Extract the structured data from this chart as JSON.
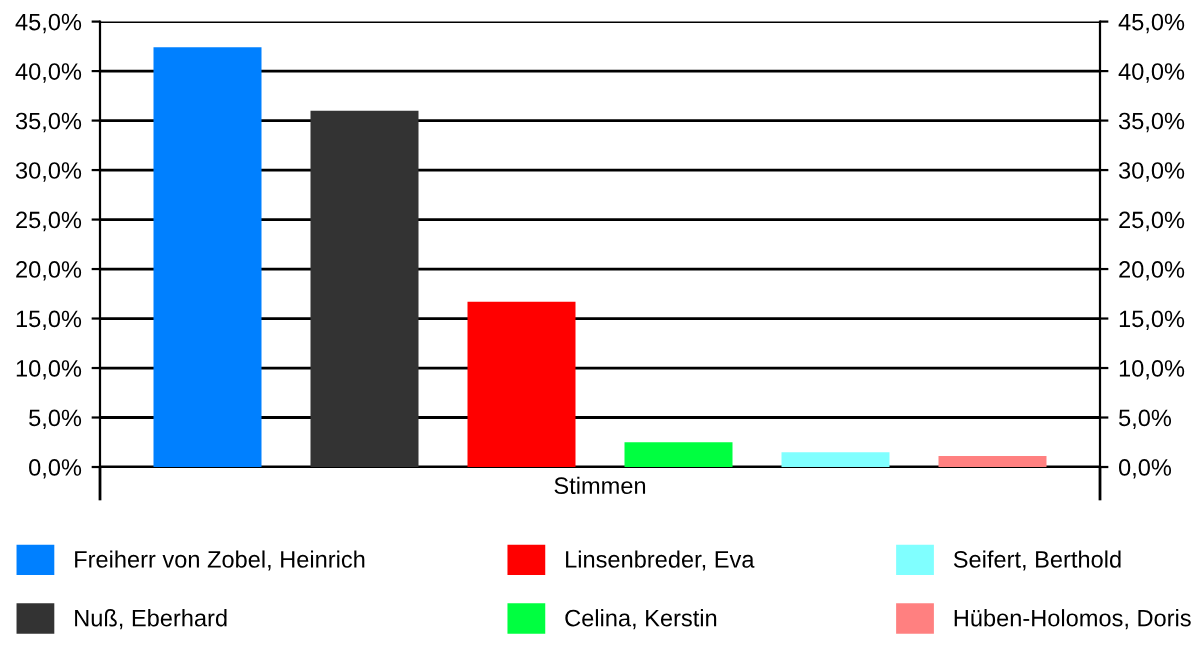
{
  "chart_data": {
    "type": "bar",
    "categories": [
      "Stimmen"
    ],
    "series": [
      {
        "name": "Freiherr von Zobel, Heinrich",
        "color": "#0080ff",
        "values": [
          42.4
        ]
      },
      {
        "name": "Nuß, Eberhard",
        "color": "#333333",
        "values": [
          36.0
        ]
      },
      {
        "name": "Linsenbreder, Eva",
        "color": "#ff0000",
        "values": [
          16.7
        ]
      },
      {
        "name": "Celina, Kerstin",
        "color": "#00ff40",
        "values": [
          2.5
        ]
      },
      {
        "name": "Seifert, Berthold",
        "color": "#80ffff",
        "values": [
          1.5
        ]
      },
      {
        "name": "Hüben-Holomos, Doris",
        "color": "#ff8080",
        "values": [
          1.1
        ]
      }
    ],
    "ylim": [
      0,
      45
    ],
    "yticks": [
      {
        "value": 0,
        "label": "0,0%"
      },
      {
        "value": 5,
        "label": "5,0%"
      },
      {
        "value": 10,
        "label": "10,0%"
      },
      {
        "value": 15,
        "label": "15,0%"
      },
      {
        "value": 20,
        "label": "20,0%"
      },
      {
        "value": 25,
        "label": "25,0%"
      },
      {
        "value": 30,
        "label": "30,0%"
      },
      {
        "value": 35,
        "label": "35,0%"
      },
      {
        "value": 40,
        "label": "40,0%"
      },
      {
        "value": 45,
        "label": "45,0%"
      }
    ],
    "grid": "y",
    "legend": "bottom"
  }
}
